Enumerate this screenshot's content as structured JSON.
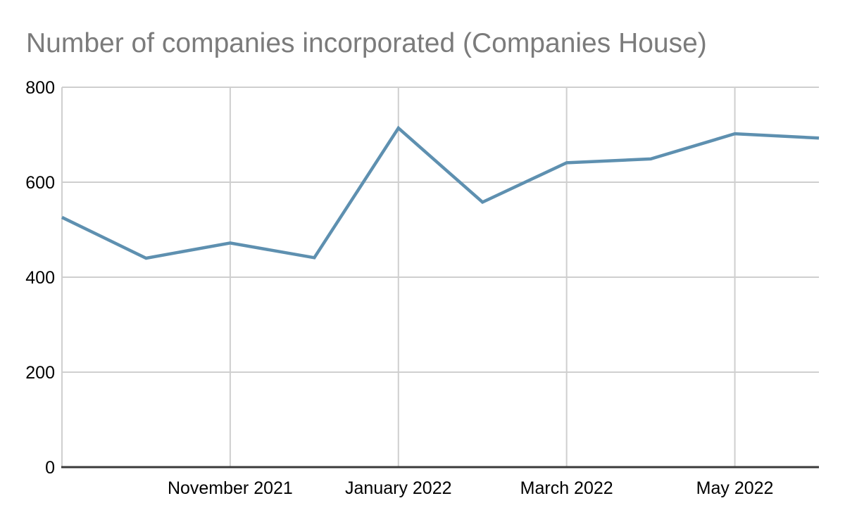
{
  "title": "Number of companies incorporated (Companies House)",
  "chart_data": {
    "type": "line",
    "title": "Number of companies incorporated (Companies House)",
    "x": [
      "Sep 2021",
      "Oct 2021",
      "Nov 2021",
      "Dec 2021",
      "Jan 2022",
      "Feb 2022",
      "Mar 2022",
      "Apr 2022",
      "May 2022",
      "Jun 2022"
    ],
    "series": [
      {
        "name": "Number of companies incorporated",
        "values": [
          526,
          440,
          472,
          441,
          714,
          558,
          641,
          649,
          702,
          693
        ]
      }
    ],
    "xlabel": "",
    "ylabel": "",
    "ylim": [
      0,
      800
    ],
    "y_ticks": [
      0,
      200,
      400,
      600,
      800
    ],
    "x_tick_labels": [
      "November 2021",
      "January 2022",
      "March 2022",
      "May 2022"
    ],
    "x_tick_indices": [
      2,
      4,
      6,
      8
    ],
    "grid": "on",
    "legend": "none"
  },
  "colors": {
    "line": "#5e90b0",
    "grid": "#cfcfcf",
    "axis": "#3a3a3a",
    "title_text": "#7b7b7b",
    "tick_text": "#000000",
    "background": "#ffffff"
  }
}
